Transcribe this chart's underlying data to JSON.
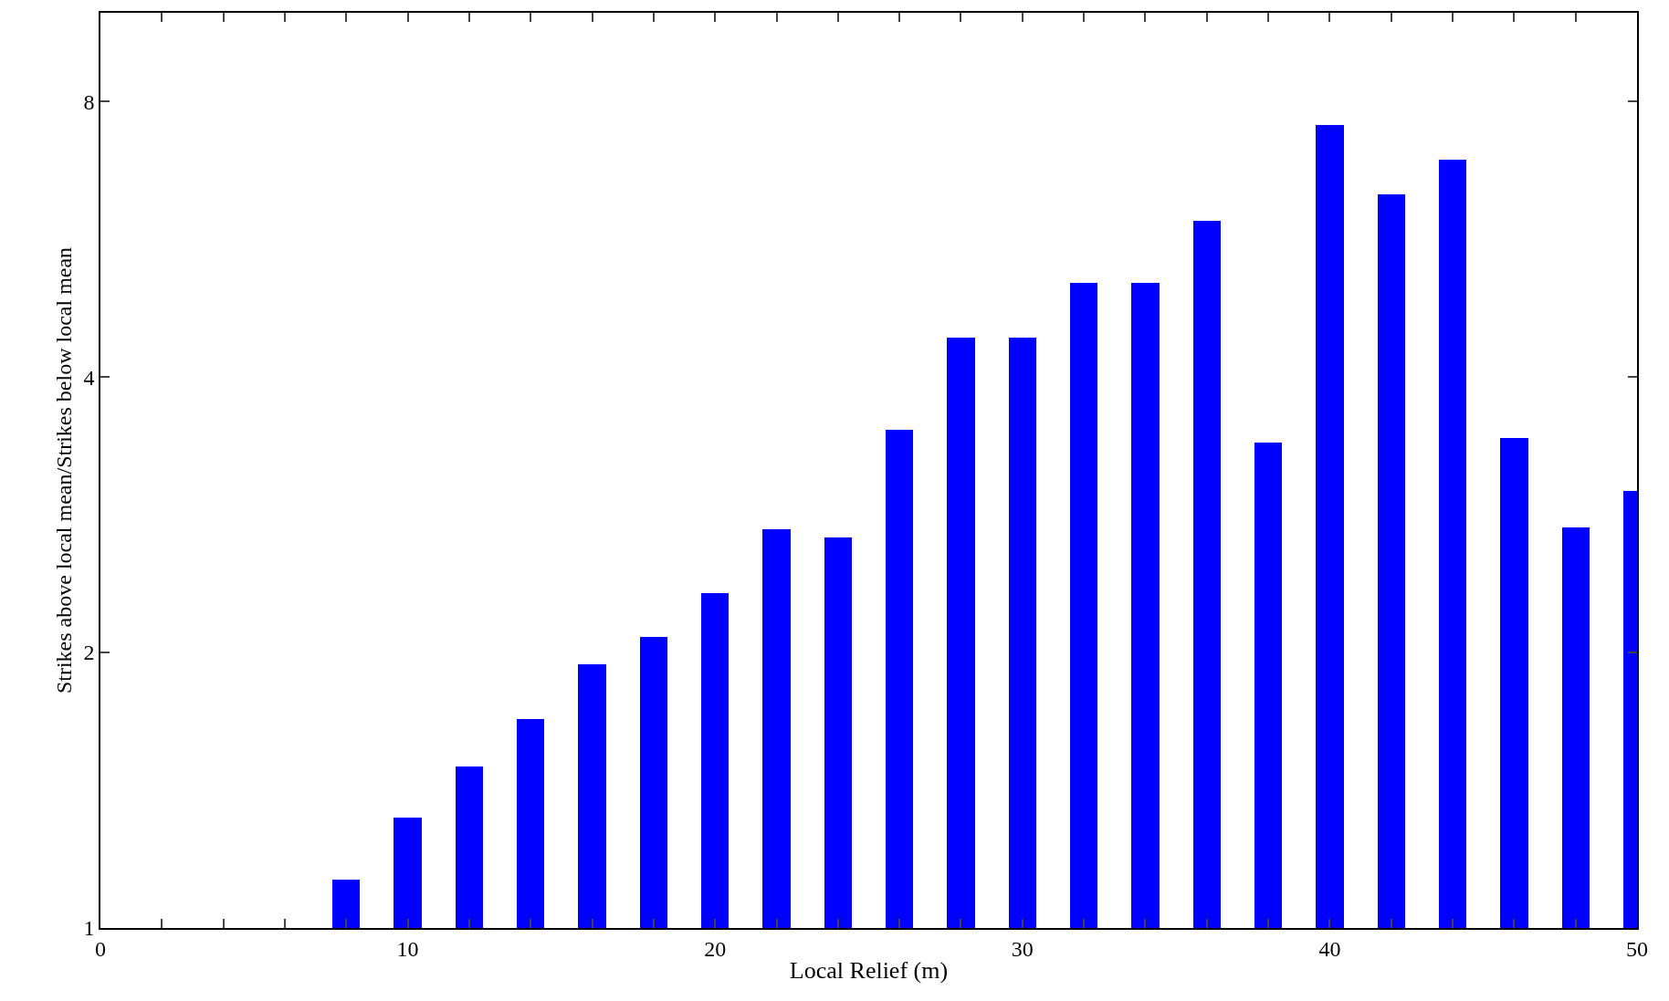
{
  "chart_data": {
    "type": "bar",
    "xlabel": "Local Relief (m)",
    "ylabel": "Strikes above local mean/Strikes below local mean",
    "x": [
      8,
      10,
      12,
      14,
      16,
      18,
      20,
      22,
      24,
      26,
      28,
      30,
      32,
      34,
      36,
      38,
      40,
      42,
      44,
      46,
      48,
      50
    ],
    "values": [
      1.13,
      1.32,
      1.5,
      1.69,
      1.94,
      2.08,
      2.32,
      2.73,
      2.67,
      3.5,
      4.42,
      4.42,
      5.07,
      5.07,
      5.92,
      3.39,
      7.54,
      6.33,
      6.91,
      3.43,
      2.74,
      3.0
    ],
    "color": "#0000ff",
    "log": true,
    "xlim": [
      0,
      50
    ],
    "ylim": [
      1,
      10
    ],
    "xticks": [
      0,
      {
        "value": 2,
        "label": null
      },
      {
        "value": 4,
        "label": null
      },
      {
        "value": 6,
        "label": null
      },
      {
        "value": 8,
        "label": null
      },
      10,
      {
        "value": 12,
        "label": null
      },
      {
        "value": 14,
        "label": null
      },
      {
        "value": 16,
        "label": null
      },
      {
        "value": 18,
        "label": null
      },
      20,
      {
        "value": 22,
        "label": null
      },
      {
        "value": 24,
        "label": null
      },
      {
        "value": 26,
        "label": null
      },
      {
        "value": 28,
        "label": null
      },
      30,
      {
        "value": 32,
        "label": null
      },
      {
        "value": 34,
        "label": null
      },
      {
        "value": 36,
        "label": null
      },
      {
        "value": 38,
        "label": null
      },
      40,
      {
        "value": 42,
        "label": null
      },
      {
        "value": 44,
        "label": null
      },
      {
        "value": 46,
        "label": null
      },
      {
        "value": 48,
        "label": null
      },
      50
    ],
    "yticks": [
      1,
      2,
      4,
      8
    ]
  }
}
